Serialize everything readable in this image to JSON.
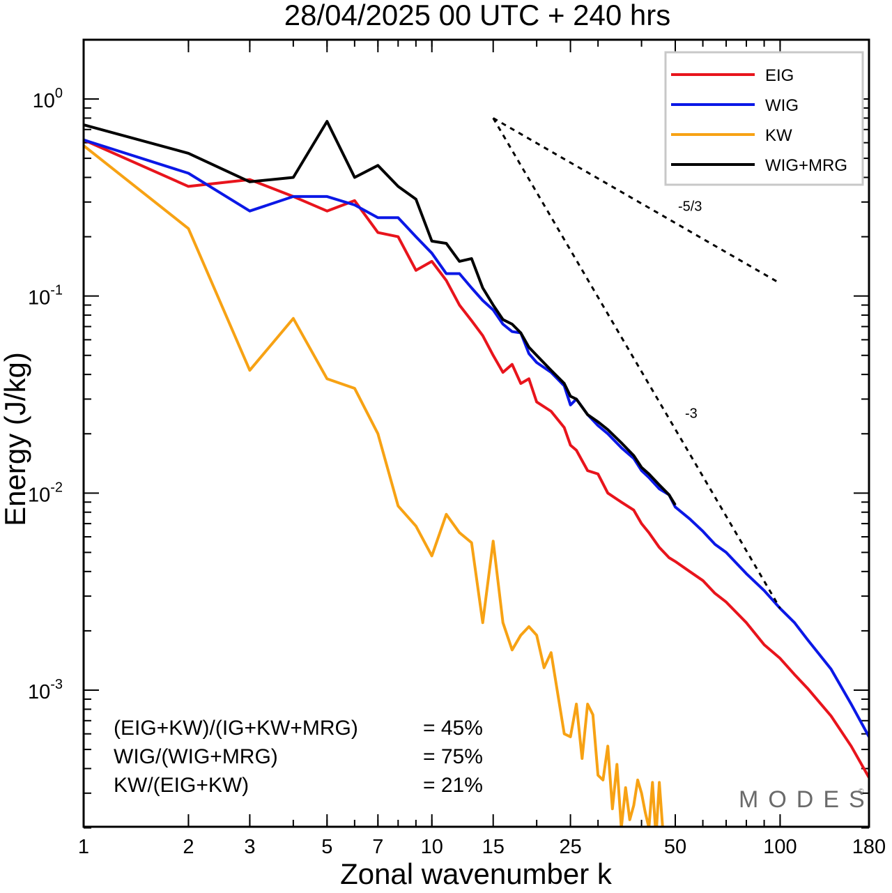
{
  "chart_data": {
    "type": "line",
    "title": "28/04/2025  00 UTC  + 240 hrs",
    "xlabel": "Zonal wavenumber k",
    "ylabel": "Energy (J/kg)",
    "x_scale": "log",
    "y_scale": "log",
    "xlim": [
      1,
      180
    ],
    "ylim": [
      0.0002,
      2.0
    ],
    "x_ticks": [
      1,
      2,
      3,
      5,
      7,
      10,
      15,
      25,
      50,
      100,
      180
    ],
    "x_tick_labels": [
      "1",
      "2",
      "3",
      "5",
      "7",
      "10",
      "15",
      "25",
      "50",
      "100",
      "180"
    ],
    "y_ticks": [
      {
        "value": 1,
        "base": "10",
        "exp": "0"
      },
      {
        "value": 0.1,
        "base": "10",
        "exp": "-1"
      },
      {
        "value": 0.01,
        "base": "10",
        "exp": "-2"
      },
      {
        "value": 0.001,
        "base": "10",
        "exp": "-3"
      }
    ],
    "legend_position": "top-right",
    "series": [
      {
        "name": "EIG",
        "color": "#e8141c",
        "points": [
          [
            1,
            0.62
          ],
          [
            2,
            0.36
          ],
          [
            3,
            0.39
          ],
          [
            4,
            0.32
          ],
          [
            5,
            0.27
          ],
          [
            6,
            0.305
          ],
          [
            7,
            0.21
          ],
          [
            8,
            0.2
          ],
          [
            9,
            0.135
          ],
          [
            10,
            0.15
          ],
          [
            11,
            0.12
          ],
          [
            12,
            0.09
          ],
          [
            13,
            0.075
          ],
          [
            14,
            0.063
          ],
          [
            15,
            0.05
          ],
          [
            16,
            0.041
          ],
          [
            17,
            0.045
          ],
          [
            18,
            0.036
          ],
          [
            19,
            0.038
          ],
          [
            20,
            0.029
          ],
          [
            22,
            0.026
          ],
          [
            24,
            0.0215
          ],
          [
            25,
            0.0175
          ],
          [
            26,
            0.0165
          ],
          [
            28,
            0.013
          ],
          [
            30,
            0.0125
          ],
          [
            32,
            0.01
          ],
          [
            35,
            0.009
          ],
          [
            38,
            0.0082
          ],
          [
            40,
            0.007
          ],
          [
            42,
            0.0063
          ],
          [
            45,
            0.0053
          ],
          [
            48,
            0.0047
          ],
          [
            50,
            0.0045
          ],
          [
            55,
            0.004
          ],
          [
            60,
            0.0036
          ],
          [
            65,
            0.0031
          ],
          [
            70,
            0.0028
          ],
          [
            80,
            0.0022
          ],
          [
            90,
            0.0017
          ],
          [
            100,
            0.00145
          ],
          [
            110,
            0.0012
          ],
          [
            120,
            0.00102
          ],
          [
            140,
            0.00074
          ],
          [
            160,
            0.00052
          ],
          [
            180,
            0.00036
          ]
        ]
      },
      {
        "name": "WIG",
        "color": "#0b18e6",
        "points": [
          [
            1,
            0.62
          ],
          [
            2,
            0.42
          ],
          [
            3,
            0.27
          ],
          [
            4,
            0.32
          ],
          [
            5,
            0.32
          ],
          [
            6,
            0.29
          ],
          [
            7,
            0.25
          ],
          [
            8,
            0.25
          ],
          [
            9,
            0.2
          ],
          [
            10,
            0.165
          ],
          [
            11,
            0.13
          ],
          [
            12,
            0.13
          ],
          [
            13,
            0.11
          ],
          [
            14,
            0.095
          ],
          [
            15,
            0.085
          ],
          [
            16,
            0.072
          ],
          [
            17,
            0.066
          ],
          [
            18,
            0.065
          ],
          [
            19,
            0.051
          ],
          [
            20,
            0.046
          ],
          [
            22,
            0.041
          ],
          [
            24,
            0.035
          ],
          [
            25,
            0.028
          ],
          [
            26,
            0.03
          ],
          [
            28,
            0.025
          ],
          [
            30,
            0.022
          ],
          [
            32,
            0.02
          ],
          [
            35,
            0.017
          ],
          [
            38,
            0.015
          ],
          [
            40,
            0.013
          ],
          [
            42,
            0.012
          ],
          [
            45,
            0.0105
          ],
          [
            48,
            0.0098
          ],
          [
            50,
            0.0085
          ],
          [
            55,
            0.0074
          ],
          [
            60,
            0.0064
          ],
          [
            65,
            0.0055
          ],
          [
            70,
            0.005
          ],
          [
            80,
            0.0039
          ],
          [
            90,
            0.0032
          ],
          [
            100,
            0.0026
          ],
          [
            110,
            0.0022
          ],
          [
            120,
            0.0018
          ],
          [
            140,
            0.00128
          ],
          [
            160,
            0.00085
          ],
          [
            180,
            0.00058
          ]
        ]
      },
      {
        "name": "KW",
        "color": "#f7a214",
        "points": [
          [
            1,
            0.58
          ],
          [
            2,
            0.22
          ],
          [
            3,
            0.042
          ],
          [
            4,
            0.077
          ],
          [
            5,
            0.038
          ],
          [
            6,
            0.034
          ],
          [
            7,
            0.02
          ],
          [
            8,
            0.0086
          ],
          [
            9,
            0.0068
          ],
          [
            10,
            0.0048
          ],
          [
            11,
            0.0078
          ],
          [
            12,
            0.0063
          ],
          [
            13,
            0.0056
          ],
          [
            14,
            0.0022
          ],
          [
            15,
            0.0057
          ],
          [
            16,
            0.0022
          ],
          [
            17,
            0.0016
          ],
          [
            18,
            0.0019
          ],
          [
            19,
            0.0021
          ],
          [
            20,
            0.0019
          ],
          [
            21,
            0.0013
          ],
          [
            22,
            0.00155
          ],
          [
            24,
            0.0006
          ],
          [
            25,
            0.00058
          ],
          [
            26,
            0.00085
          ],
          [
            27,
            0.00045
          ],
          [
            28,
            0.00085
          ],
          [
            29,
            0.00075
          ],
          [
            30,
            0.00037
          ],
          [
            31,
            0.00035
          ],
          [
            32,
            0.00052
          ],
          [
            33,
            0.00025
          ],
          [
            34,
            0.00042
          ],
          [
            35,
            0.0002
          ],
          [
            36,
            0.00032
          ],
          [
            37,
            0.00022
          ],
          [
            38,
            0.00026
          ],
          [
            39,
            0.00035
          ],
          [
            40,
            0.0003
          ],
          [
            41,
            0.00024
          ],
          [
            42,
            0.0002
          ],
          [
            43,
            0.00034
          ],
          [
            44,
            0.00018
          ],
          [
            45,
            0.00034
          ],
          [
            46,
            0.0002
          ]
        ]
      },
      {
        "name": "WIG+MRG",
        "color": "#000000",
        "points": [
          [
            1,
            0.74
          ],
          [
            2,
            0.53
          ],
          [
            3,
            0.38
          ],
          [
            4,
            0.4
          ],
          [
            5,
            0.77
          ],
          [
            6,
            0.4
          ],
          [
            7,
            0.46
          ],
          [
            8,
            0.36
          ],
          [
            9,
            0.31
          ],
          [
            10,
            0.19
          ],
          [
            11,
            0.185
          ],
          [
            12,
            0.15
          ],
          [
            13,
            0.155
          ],
          [
            14,
            0.11
          ],
          [
            15,
            0.09
          ],
          [
            16,
            0.076
          ],
          [
            17,
            0.072
          ],
          [
            18,
            0.065
          ],
          [
            19,
            0.055
          ],
          [
            20,
            0.05
          ],
          [
            22,
            0.042
          ],
          [
            24,
            0.036
          ],
          [
            25,
            0.031
          ],
          [
            26,
            0.03
          ],
          [
            28,
            0.025
          ],
          [
            30,
            0.023
          ],
          [
            32,
            0.021
          ],
          [
            35,
            0.018
          ],
          [
            38,
            0.0155
          ],
          [
            40,
            0.0135
          ],
          [
            42,
            0.0125
          ],
          [
            45,
            0.011
          ],
          [
            48,
            0.0098
          ],
          [
            50,
            0.0087
          ]
        ]
      }
    ],
    "reference_lines": [
      {
        "label": "-5/3",
        "style": "dashed",
        "from": [
          15,
          0.8
        ],
        "to": [
          100,
          0.116
        ]
      },
      {
        "label": "-3",
        "style": "dashed",
        "from": [
          15,
          0.8
        ],
        "to": [
          100,
          0.0026
        ]
      }
    ],
    "annotations": [
      {
        "label": "(EIG+KW)/(IG+KW+MRG)",
        "value": "= 45%"
      },
      {
        "label": "WIG/(WIG+MRG)",
        "value": "= 75%"
      },
      {
        "label": "KW/(EIG+KW)",
        "value": "= 21%"
      }
    ]
  },
  "brand": {
    "text": "MODES",
    "mark": "©"
  }
}
